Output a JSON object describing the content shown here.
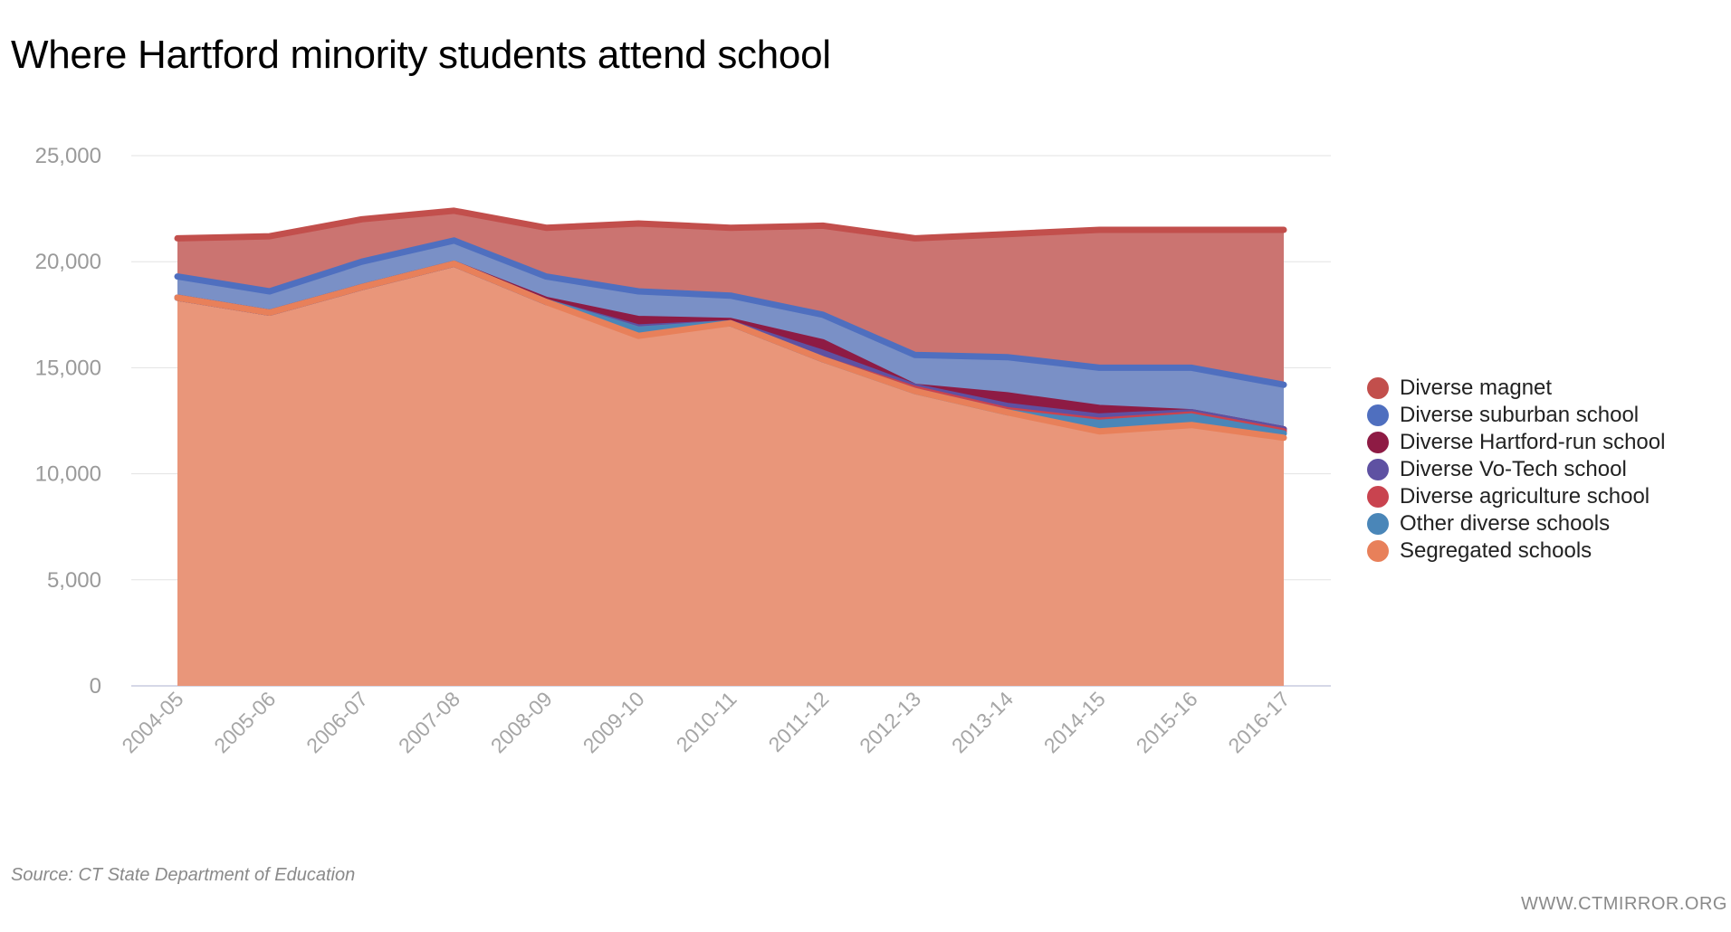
{
  "title": "Where Hartford minority students attend school",
  "source": "Source: CT State Department of Education",
  "credit": "WWW.CTMIRROR.ORG",
  "chart_data": {
    "type": "area",
    "stacked": true,
    "categories": [
      "2004-05",
      "2005-06",
      "2006-07",
      "2007-08",
      "2008-09",
      "2009-10",
      "2010-11",
      "2011-12",
      "2012-13",
      "2013-14",
      "2014-15",
      "2015-16",
      "2016-17"
    ],
    "y_ticks": [
      "0",
      "5,000",
      "10,000",
      "15,000",
      "20,000",
      "25,000"
    ],
    "ylim": [
      0,
      25000
    ],
    "grid": true,
    "legend_position": "right",
    "series": [
      {
        "name": "Segregated schools",
        "color": "#e8805a",
        "fill": "#e9967a",
        "values": [
          18300,
          17600,
          18800,
          19900,
          18100,
          16500,
          17100,
          15400,
          13900,
          12900,
          12000,
          12300,
          11700
        ]
      },
      {
        "name": "Other diverse schools",
        "color": "#4a86b8",
        "fill": "#4a86b8",
        "values": [
          0,
          0,
          0,
          0,
          0,
          300,
          0,
          0,
          0,
          0,
          400,
          400,
          200
        ]
      },
      {
        "name": "Diverse agriculture school",
        "color": "#c9434f",
        "fill": "#c9434f",
        "values": [
          0,
          0,
          0,
          0,
          0,
          0,
          0,
          0,
          100,
          100,
          100,
          100,
          100
        ]
      },
      {
        "name": "Diverse Vo-Tech school",
        "color": "#5e51a2",
        "fill": "#5e51a2",
        "values": [
          0,
          0,
          0,
          0,
          0,
          100,
          0,
          300,
          100,
          200,
          200,
          100,
          100
        ]
      },
      {
        "name": "Diverse Hartford-run school",
        "color": "#8e1b44",
        "fill": "#8e1b44",
        "values": [
          0,
          0,
          0,
          0,
          100,
          400,
          100,
          500,
          0,
          500,
          400,
          0,
          0
        ]
      },
      {
        "name": "Diverse suburban school",
        "color": "#4f6fbf",
        "fill": "#7a90c6",
        "values": [
          1000,
          1000,
          1200,
          1100,
          1100,
          1300,
          1200,
          1300,
          1500,
          1800,
          1900,
          2100,
          2100
        ]
      },
      {
        "name": "Diverse magnet",
        "color": "#c24f4c",
        "fill": "#cb7471",
        "values": [
          1800,
          2600,
          2000,
          1400,
          2300,
          3200,
          3200,
          4200,
          5500,
          5800,
          6500,
          6500,
          7300
        ]
      }
    ],
    "legend_order": [
      "Diverse magnet",
      "Diverse suburban school",
      "Diverse Hartford-run school",
      "Diverse Vo-Tech school",
      "Diverse agriculture school",
      "Other diverse schools",
      "Segregated schools"
    ]
  }
}
